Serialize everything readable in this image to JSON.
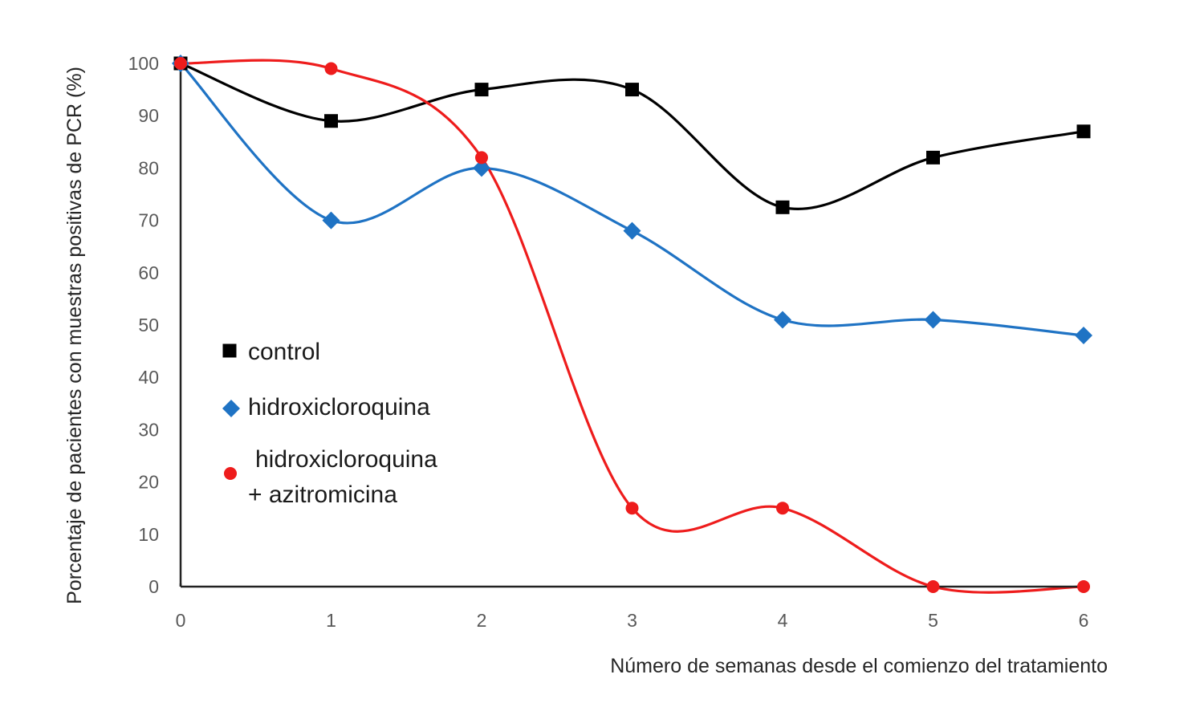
{
  "chart_data": {
    "type": "scatter",
    "title": "",
    "xlabel": "Número de semanas desde el comienzo del tratamiento",
    "ylabel": "Porcentaje de pacientes con muestras positivas de PCR (%)",
    "xlim": [
      0,
      6
    ],
    "ylim": [
      0,
      100
    ],
    "x_ticks": [
      "0",
      "1",
      "2",
      "3",
      "4",
      "5",
      "6"
    ],
    "y_ticks": [
      "0",
      "10",
      "20",
      "30",
      "40",
      "50",
      "60",
      "70",
      "80",
      "90",
      "100"
    ],
    "grid": false,
    "legend_position": "left-middle",
    "trendline": "smoothed",
    "series": [
      {
        "name": "control",
        "legend_lines": [
          "control"
        ],
        "marker": "square",
        "color": "#000000",
        "x": [
          0,
          1,
          2,
          3,
          4,
          5,
          6
        ],
        "y": [
          100,
          89,
          95,
          95,
          72.5,
          82,
          87
        ]
      },
      {
        "name": "hidroxicloroquina",
        "legend_lines": [
          "hidroxicloroquina"
        ],
        "marker": "diamond",
        "color": "#1f73c4",
        "x": [
          0,
          1,
          2,
          3,
          4,
          5,
          6
        ],
        "y": [
          100,
          70,
          80,
          68,
          51,
          51,
          48
        ]
      },
      {
        "name": "hidroxicloroquina + azitromicina",
        "legend_lines": [
          "hidroxicloroquina",
          "+ azitromicina"
        ],
        "marker": "circle",
        "color": "#ee1c1c",
        "x": [
          0,
          1,
          2,
          3,
          4,
          5,
          6
        ],
        "y": [
          100,
          99,
          82,
          15,
          15,
          0,
          0
        ]
      }
    ]
  }
}
